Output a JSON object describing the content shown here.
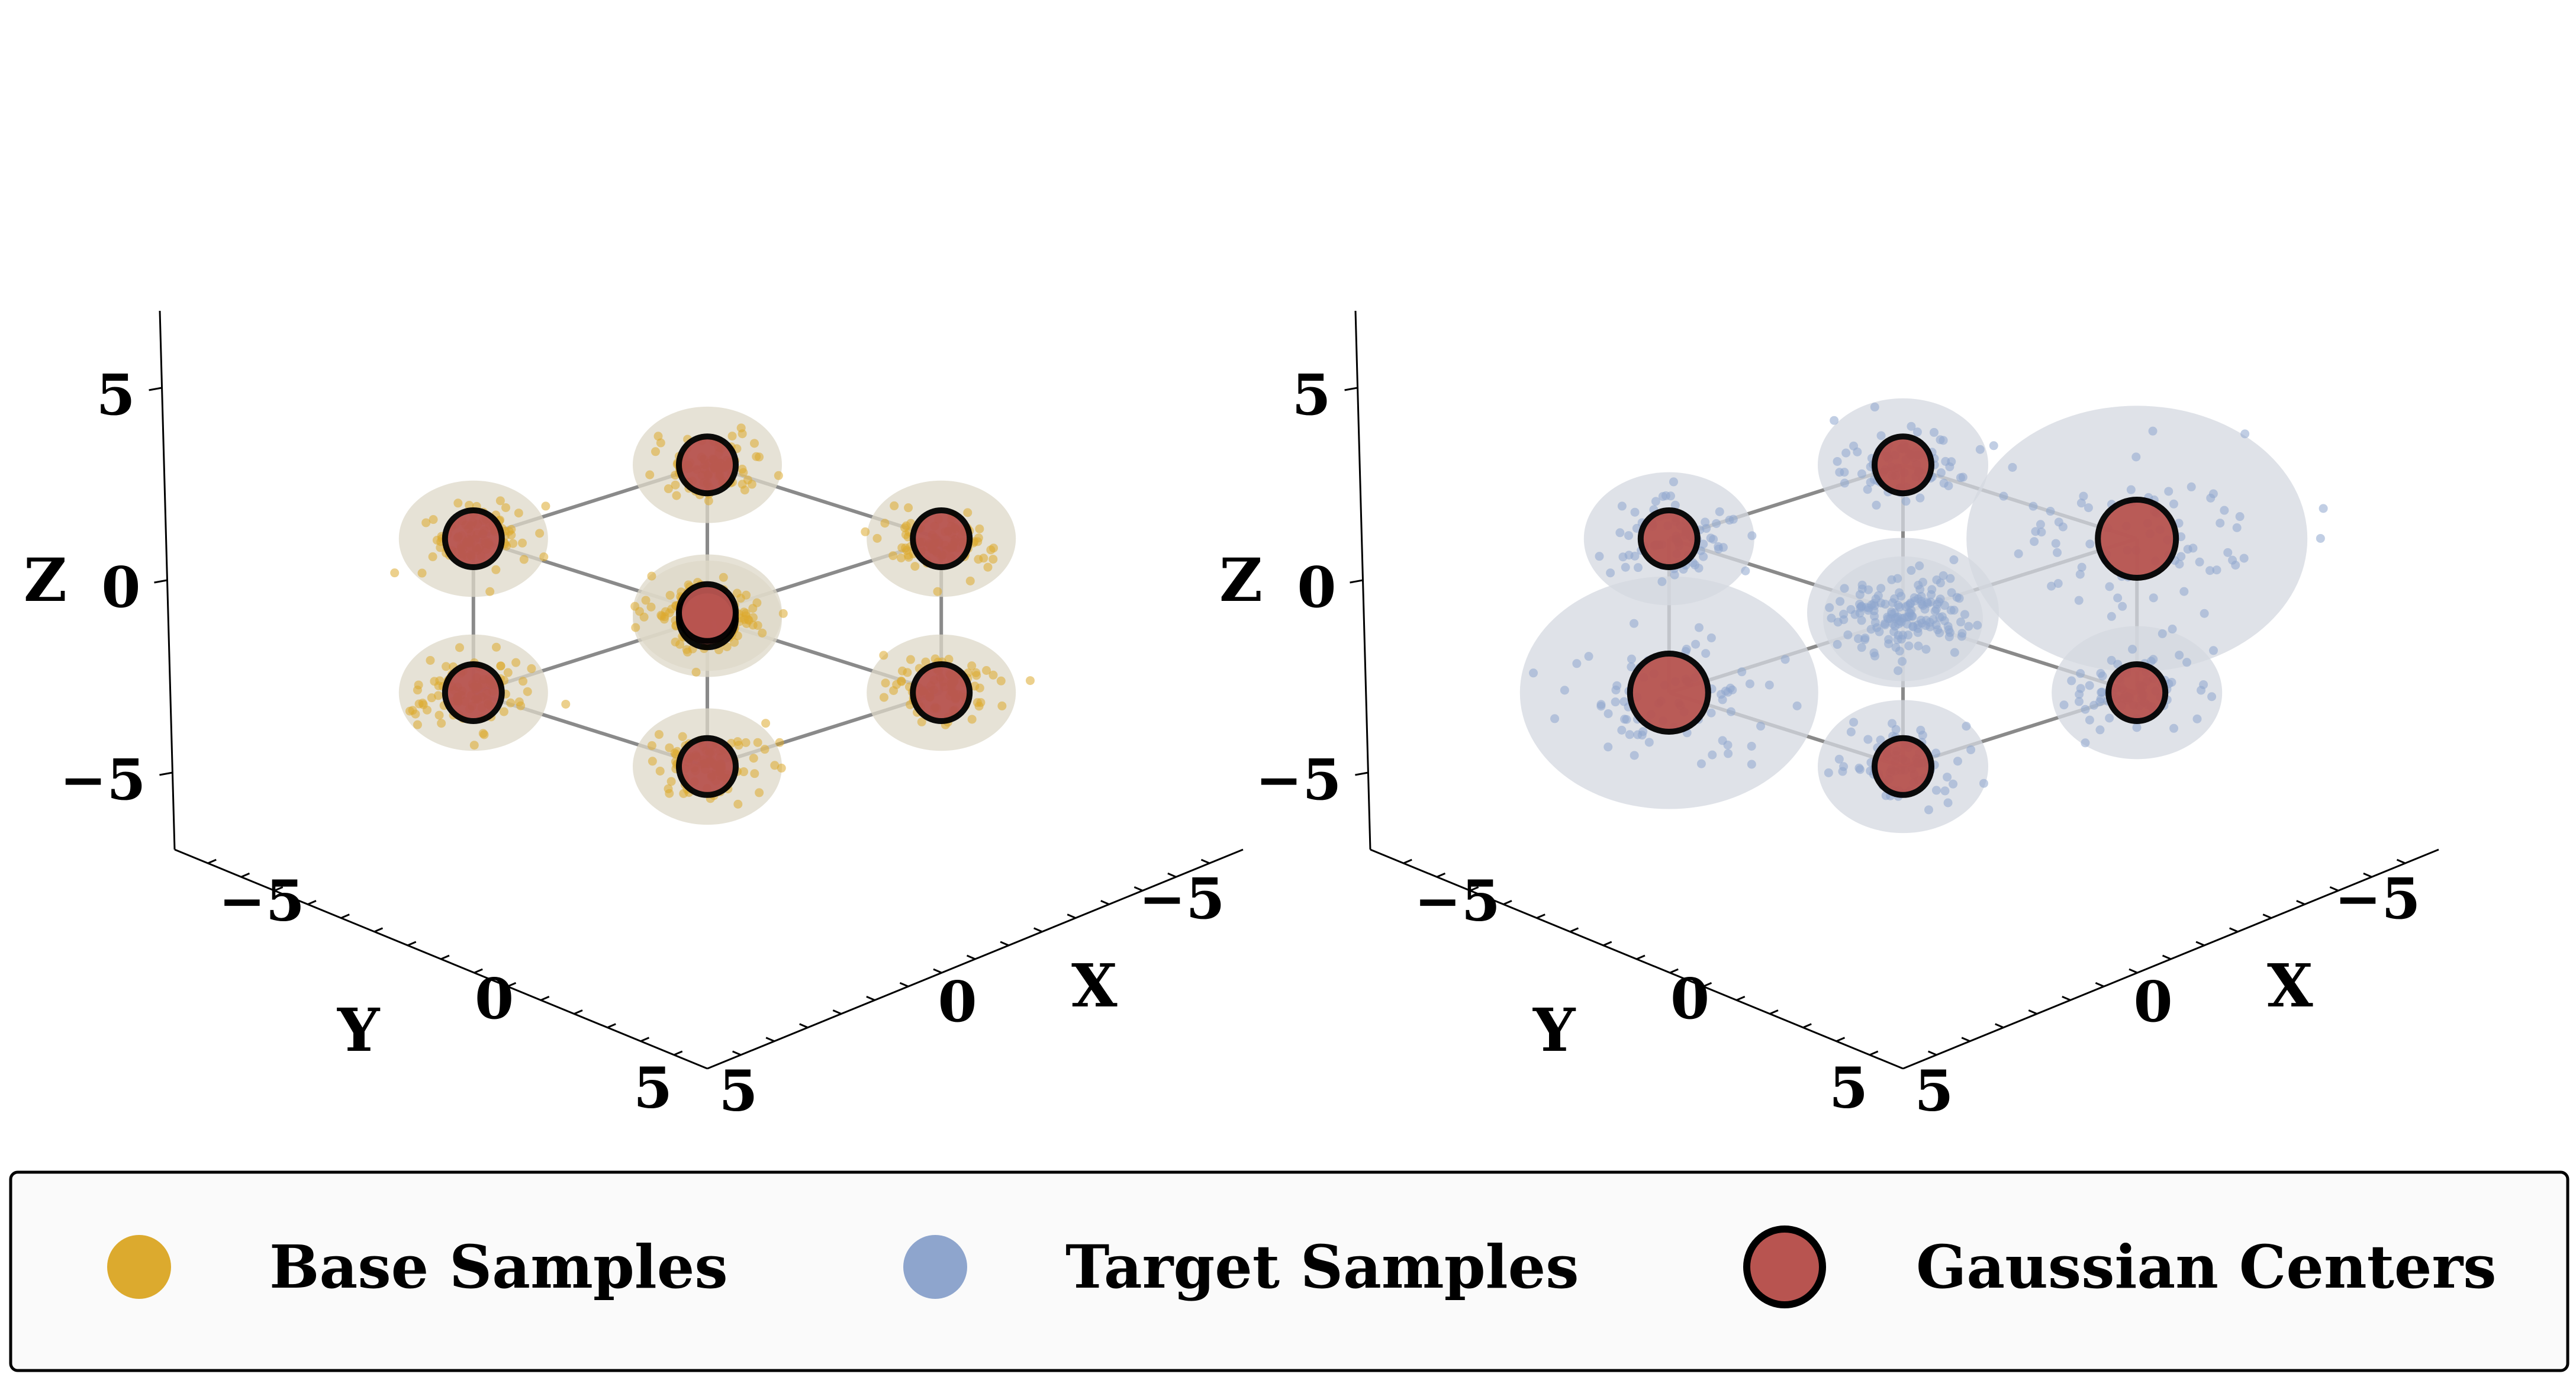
{
  "colors": {
    "base": "#dcaa2e",
    "base_blob": "#ddd8c8",
    "target": "#8ea5cd",
    "target_blob": "#d4d8e0",
    "center_fill": "#b85450",
    "edge": "#8a8a8a",
    "axis": "#000000"
  },
  "chart_data": [
    {
      "type": "scatter3d",
      "panel": "left",
      "xlabel": "X",
      "ylabel": "Y",
      "zlabel": "Z",
      "xlim": [
        -8,
        8
      ],
      "ylim": [
        -8,
        8
      ],
      "zlim": [
        -7,
        7
      ],
      "x_ticks": [
        {
          "v": -5,
          "label": "−5"
        },
        {
          "v": 0,
          "label": "0"
        },
        {
          "v": 5,
          "label": "5"
        }
      ],
      "y_ticks": [
        {
          "v": -5,
          "label": "−5"
        },
        {
          "v": 0,
          "label": "0"
        },
        {
          "v": 5,
          "label": "5"
        }
      ],
      "z_ticks": [
        {
          "v": 5,
          "label": "5"
        },
        {
          "v": 0,
          "label": "0"
        },
        {
          "v": -5,
          "label": "−5"
        }
      ],
      "series": [
        {
          "name": "Base Samples",
          "color_key": "base",
          "spread": 0.7,
          "n_per_center": 90,
          "centers": [
            {
              "x": -4,
              "y": -4,
              "z": -4,
              "spread": 0.7,
              "show_center": true
            },
            {
              "x": -4,
              "y": -4,
              "z": 4,
              "spread": 0.7,
              "show_center": true
            },
            {
              "x": -4,
              "y": 4,
              "z": -4,
              "spread": 0.7,
              "show_center": true
            },
            {
              "x": -4,
              "y": 4,
              "z": 4,
              "spread": 0.7,
              "show_center": true
            },
            {
              "x": 4,
              "y": -4,
              "z": -4,
              "spread": 0.7,
              "show_center": true
            },
            {
              "x": 4,
              "y": -4,
              "z": 4,
              "spread": 0.7,
              "show_center": true
            },
            {
              "x": 4,
              "y": 4,
              "z": -4,
              "spread": 0.7,
              "show_center": true
            },
            {
              "x": 4,
              "y": 4,
              "z": 4,
              "spread": 0.7,
              "show_center": true
            }
          ]
        }
      ]
    },
    {
      "type": "scatter3d",
      "panel": "right",
      "xlabel": "X",
      "ylabel": "Y",
      "zlabel": "Z",
      "xlim": [
        -8,
        8
      ],
      "ylim": [
        -8,
        8
      ],
      "zlim": [
        -7,
        7
      ],
      "x_ticks": [
        {
          "v": -5,
          "label": "−5"
        },
        {
          "v": 0,
          "label": "0"
        },
        {
          "v": 5,
          "label": "5"
        }
      ],
      "y_ticks": [
        {
          "v": -5,
          "label": "−5"
        },
        {
          "v": 0,
          "label": "0"
        },
        {
          "v": 5,
          "label": "5"
        }
      ],
      "z_ticks": [
        {
          "v": 5,
          "label": "5"
        },
        {
          "v": 0,
          "label": "0"
        },
        {
          "v": -5,
          "label": "−5"
        }
      ],
      "series": [
        {
          "name": "Target Samples",
          "color_key": "target",
          "n_per_center": 80,
          "centers": [
            {
              "x": -4,
              "y": -4,
              "z": -4,
              "spread": 0.75,
              "show_center": false
            },
            {
              "x": -4,
              "y": -4,
              "z": 4,
              "spread": 0.8,
              "show_center": true
            },
            {
              "x": -4,
              "y": 4,
              "z": -4,
              "spread": 0.8,
              "show_center": true
            },
            {
              "x": -4,
              "y": 4,
              "z": 4,
              "spread": 1.6,
              "show_center": true
            },
            {
              "x": 4,
              "y": -4,
              "z": -4,
              "spread": 1.4,
              "show_center": true
            },
            {
              "x": 4,
              "y": -4,
              "z": 4,
              "spread": 0.8,
              "show_center": true
            },
            {
              "x": 4,
              "y": 4,
              "z": -4,
              "spread": 0.8,
              "show_center": true
            },
            {
              "x": 4,
              "y": 4,
              "z": 4,
              "spread": 0.9,
              "show_center": false
            }
          ]
        }
      ]
    }
  ],
  "legend": {
    "items": [
      {
        "label": "Base Samples",
        "marker": "base"
      },
      {
        "label": "Target Samples",
        "marker": "target"
      },
      {
        "label": "Gaussian Centers",
        "marker": "center"
      }
    ]
  }
}
